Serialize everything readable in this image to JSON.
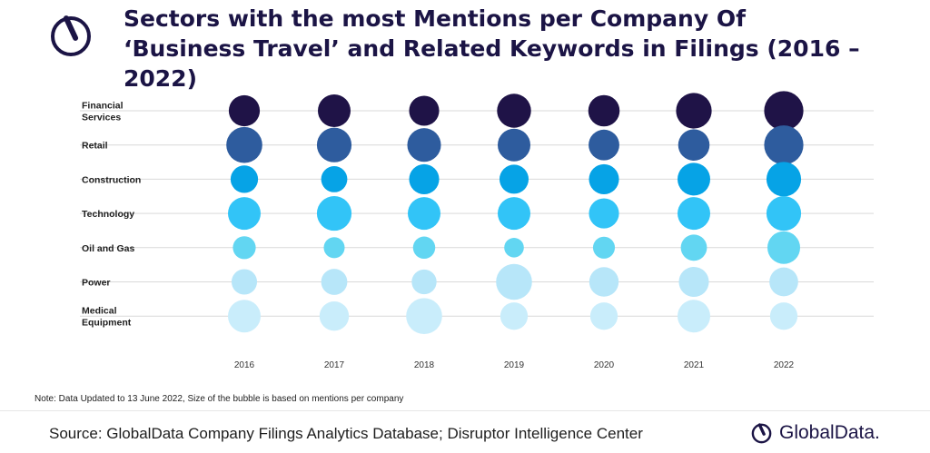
{
  "title": "Sectors with the most Mentions per Company Of ‘Business Travel’ and Related Keywords in Filings (2016 – 2022)",
  "note": "Note: Data Updated to 13 June 2022, Size of the bubble is based on mentions per company",
  "source": "Source: GlobalData Company Filings Analytics Database; Disruptor Intelligence Center",
  "brand": "GlobalData.",
  "icons": {
    "title_logo": "globaldata-logo-icon",
    "footer_logo": "globaldata-logo-icon"
  },
  "colors": {
    "title": "#1b1445",
    "brand": "#1b1445",
    "gridline": "#d9d9d9"
  },
  "chart_data": {
    "type": "bubble",
    "title": "",
    "x": [
      "2016",
      "2017",
      "2018",
      "2019",
      "2020",
      "2021",
      "2022"
    ],
    "series": [
      {
        "name": "Financial Services",
        "label_lines": [
          "Financial",
          "Services"
        ],
        "color": "#1f1347",
        "values": [
          0.95,
          1.0,
          0.92,
          1.04,
          0.96,
          1.09,
          1.2
        ]
      },
      {
        "name": "Retail",
        "label_lines": [
          "Retail"
        ],
        "color": "#2e5c9e",
        "values": [
          1.1,
          1.06,
          1.03,
          1.0,
          0.94,
          0.96,
          1.2
        ]
      },
      {
        "name": "Construction",
        "label_lines": [
          "Construction"
        ],
        "color": "#06a3e6",
        "values": [
          0.84,
          0.8,
          0.92,
          0.89,
          0.92,
          1.0,
          1.06
        ]
      },
      {
        "name": "Technology",
        "label_lines": [
          "Technology"
        ],
        "color": "#32c4f7",
        "values": [
          1.0,
          1.06,
          1.0,
          1.0,
          0.92,
          1.0,
          1.06
        ]
      },
      {
        "name": "Oil and Gas",
        "label_lines": [
          "Oil and Gas"
        ],
        "color": "#62d6f2",
        "values": [
          0.7,
          0.64,
          0.68,
          0.6,
          0.67,
          0.8,
          1.0
        ]
      },
      {
        "name": "Power",
        "label_lines": [
          "Power"
        ],
        "color": "#b7e6f9",
        "values": [
          0.78,
          0.8,
          0.76,
          1.1,
          0.9,
          0.92,
          0.88
        ]
      },
      {
        "name": "Medical Equipment",
        "label_lines": [
          "Medical",
          "Equipment"
        ],
        "color": "#c9edfb",
        "values": [
          1.0,
          0.9,
          1.1,
          0.84,
          0.84,
          1.0,
          0.84
        ]
      }
    ],
    "size_basis": "mentions per company",
    "grid": true,
    "legend": "none"
  }
}
